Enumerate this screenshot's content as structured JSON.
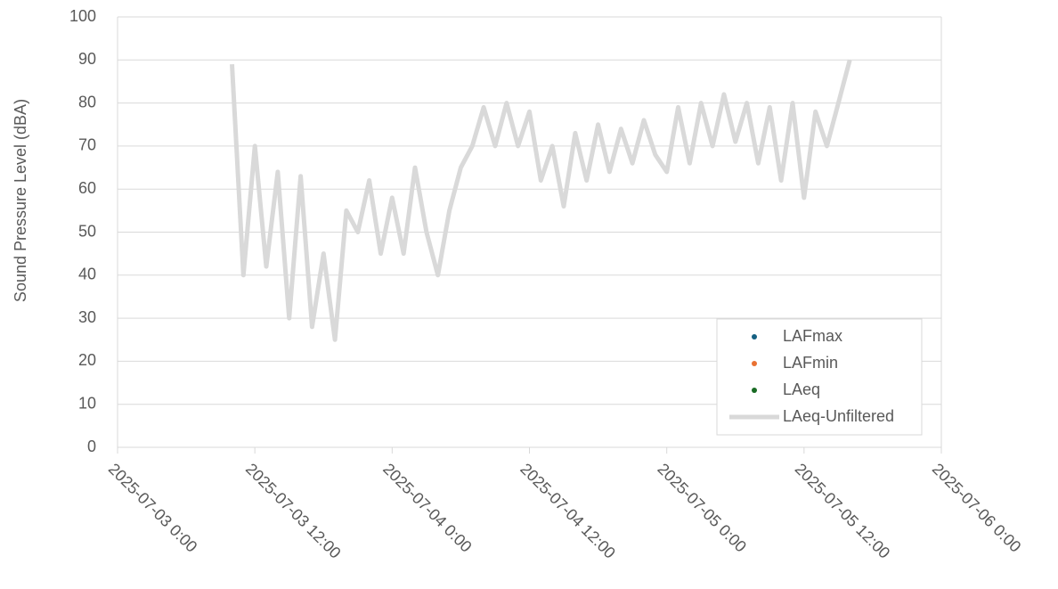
{
  "chart_data": {
    "type": "line",
    "y_label": "Sound Pressure Level (dBA)",
    "x": [
      "2025-07-03 10:00",
      "2025-07-03 11:00",
      "2025-07-03 12:00",
      "2025-07-03 13:00",
      "2025-07-03 14:00",
      "2025-07-03 15:00",
      "2025-07-03 16:00",
      "2025-07-03 17:00",
      "2025-07-03 18:00",
      "2025-07-03 19:00",
      "2025-07-03 20:00",
      "2025-07-03 21:00",
      "2025-07-03 22:00",
      "2025-07-03 23:00",
      "2025-07-04 0:00",
      "2025-07-04 1:00",
      "2025-07-04 2:00",
      "2025-07-04 3:00",
      "2025-07-04 4:00",
      "2025-07-04 5:00",
      "2025-07-04 6:00",
      "2025-07-04 7:00",
      "2025-07-04 8:00",
      "2025-07-04 9:00",
      "2025-07-04 10:00",
      "2025-07-04 11:00",
      "2025-07-04 12:00",
      "2025-07-04 13:00",
      "2025-07-04 14:00",
      "2025-07-04 15:00",
      "2025-07-04 16:00",
      "2025-07-04 17:00",
      "2025-07-04 18:00",
      "2025-07-04 19:00",
      "2025-07-04 20:00",
      "2025-07-04 21:00",
      "2025-07-04 22:00",
      "2025-07-04 23:00",
      "2025-07-05 0:00",
      "2025-07-05 1:00",
      "2025-07-05 2:00",
      "2025-07-05 3:00",
      "2025-07-05 4:00",
      "2025-07-05 5:00",
      "2025-07-05 6:00",
      "2025-07-05 7:00",
      "2025-07-05 8:00",
      "2025-07-05 9:00",
      "2025-07-05 10:00",
      "2025-07-05 11:00",
      "2025-07-05 12:00",
      "2025-07-05 13:00",
      "2025-07-05 14:00",
      "2025-07-05 15:00",
      "2025-07-05 16:00"
    ],
    "series": [
      {
        "name": "LAFmax",
        "kind": "scatter",
        "color": "#156082",
        "values": [
          null,
          null,
          null,
          null,
          null,
          null,
          null,
          null,
          null,
          null,
          null,
          null,
          null,
          null,
          null,
          null,
          null,
          null,
          null,
          null,
          null,
          null,
          null,
          null,
          null,
          null,
          null,
          null,
          null,
          null,
          null,
          null,
          null,
          null,
          null,
          null,
          null,
          null,
          null,
          null,
          null,
          null,
          null,
          null,
          null,
          null,
          null,
          null,
          null,
          null,
          null,
          null,
          null,
          null,
          null
        ]
      },
      {
        "name": "LAFmin",
        "kind": "scatter",
        "color": "#e97132",
        "values": [
          null,
          null,
          null,
          null,
          null,
          null,
          null,
          null,
          null,
          null,
          null,
          null,
          null,
          null,
          null,
          null,
          null,
          null,
          null,
          null,
          null,
          null,
          null,
          null,
          null,
          null,
          null,
          null,
          null,
          null,
          null,
          null,
          null,
          null,
          null,
          null,
          null,
          null,
          null,
          null,
          null,
          null,
          null,
          null,
          null,
          null,
          null,
          null,
          null,
          null,
          null,
          null,
          null,
          null,
          null
        ]
      },
      {
        "name": "LAeq",
        "kind": "scatter",
        "color": "#196b24",
        "values": [
          null,
          null,
          null,
          null,
          null,
          null,
          null,
          null,
          null,
          null,
          null,
          null,
          null,
          null,
          null,
          null,
          null,
          null,
          null,
          null,
          null,
          null,
          null,
          null,
          null,
          null,
          null,
          null,
          null,
          null,
          null,
          null,
          null,
          null,
          null,
          null,
          null,
          null,
          null,
          null,
          null,
          null,
          null,
          null,
          null,
          null,
          null,
          null,
          null,
          null,
          null,
          null,
          null,
          null,
          null
        ]
      },
      {
        "name": "LAeq-Unfiltered",
        "kind": "line",
        "color": "#d9d9d9",
        "values": [
          89,
          40,
          70,
          42,
          64,
          30,
          63,
          28,
          45,
          25,
          55,
          50,
          62,
          45,
          58,
          45,
          65,
          50,
          40,
          55,
          65,
          70,
          79,
          70,
          80,
          70,
          78,
          62,
          70,
          56,
          73,
          62,
          75,
          64,
          74,
          66,
          76,
          68,
          64,
          79,
          66,
          80,
          70,
          82,
          71,
          80,
          66,
          79,
          62,
          80,
          58,
          78,
          70,
          80,
          90
        ]
      }
    ],
    "xlim": [
      "2025-07-03 0:00",
      "2025-07-06 0:00"
    ],
    "xticks": [
      "2025-07-03 0:00",
      "2025-07-03 12:00",
      "2025-07-04 0:00",
      "2025-07-04 12:00",
      "2025-07-05 0:00",
      "2025-07-05 12:00",
      "2025-07-06 0:00"
    ],
    "ylim": [
      0,
      100
    ],
    "yticks": [
      0,
      10,
      20,
      30,
      40,
      50,
      60,
      70,
      80,
      90,
      100
    ],
    "grid": true,
    "legend": "lower right"
  }
}
